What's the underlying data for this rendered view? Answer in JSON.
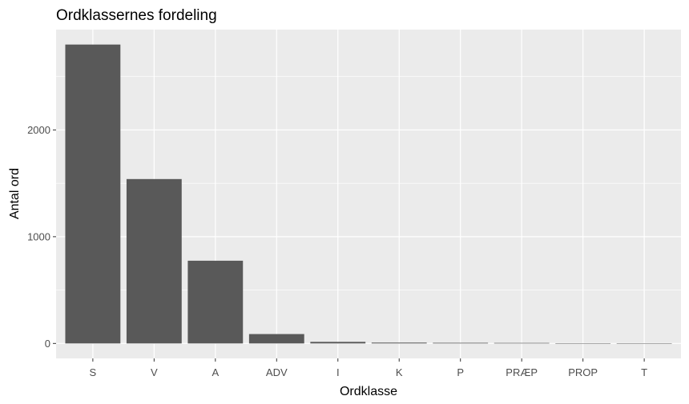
{
  "chart_data": {
    "type": "bar",
    "title": "Ordklassernes fordeling",
    "xlabel": "Ordklasse",
    "ylabel": "Antal ord",
    "categories": [
      "S",
      "V",
      "A",
      "ADV",
      "I",
      "K",
      "P",
      "PRÆP",
      "PROP",
      "T"
    ],
    "values": [
      2800,
      1540,
      775,
      88,
      15,
      8,
      6,
      5,
      2,
      1
    ],
    "yticks": [
      0,
      1000,
      2000
    ],
    "ytick_labels": [
      "0",
      "1000",
      "2000"
    ],
    "ylim": [
      -140,
      2940
    ],
    "grid": true,
    "legend": "none",
    "colors": {
      "bar": "#595959",
      "panel": "#ebebeb",
      "grid_major": "#ffffff",
      "tick_text": "#4d4d4d"
    }
  }
}
